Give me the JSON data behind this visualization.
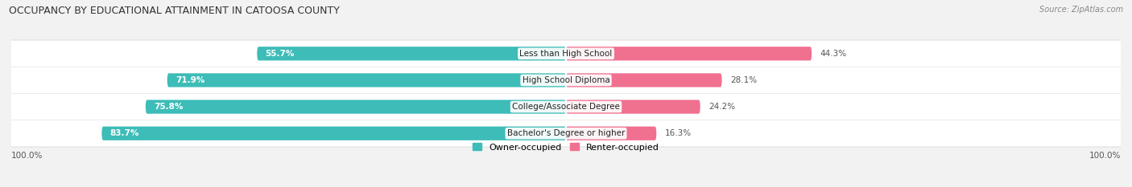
{
  "title": "OCCUPANCY BY EDUCATIONAL ATTAINMENT IN CATOOSA COUNTY",
  "source": "Source: ZipAtlas.com",
  "categories": [
    "Less than High School",
    "High School Diploma",
    "College/Associate Degree",
    "Bachelor's Degree or higher"
  ],
  "owner_pct": [
    55.7,
    71.9,
    75.8,
    83.7
  ],
  "renter_pct": [
    44.3,
    28.1,
    24.2,
    16.3
  ],
  "owner_color": "#3dbcb8",
  "renter_color": "#f07090",
  "bg_color": "#f2f2f2",
  "row_bg_color": "#ffffff",
  "row_shadow_color": "#d8d8d8",
  "label_owner_color": "#ffffff",
  "label_renter_color": "#555555",
  "label_pct_color": "#555555",
  "title_color": "#333333",
  "source_color": "#888888",
  "legend_owner": "Owner-occupied",
  "legend_renter": "Renter-occupied",
  "axis_label": "100.0%"
}
